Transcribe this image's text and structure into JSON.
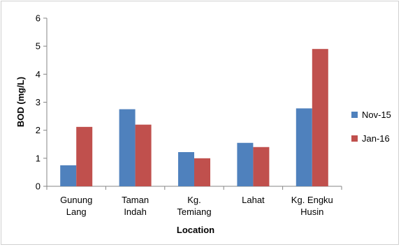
{
  "chart_data": {
    "type": "bar",
    "title": "",
    "xlabel": "Location",
    "ylabel": "BOD (mg/L)",
    "ylim": [
      0,
      6
    ],
    "yticks": [
      0,
      1,
      2,
      3,
      4,
      5,
      6
    ],
    "categories": [
      [
        "Gunung",
        "Lang"
      ],
      [
        "Taman",
        "Indah"
      ],
      [
        "Kg.",
        "Temiang"
      ],
      [
        "Lahat"
      ],
      [
        "Kg. Engku",
        "Husin"
      ]
    ],
    "series": [
      {
        "name": "Nov-15",
        "color": "#4F81BD",
        "values": [
          0.75,
          2.75,
          1.22,
          1.55,
          2.78
        ]
      },
      {
        "name": "Jan-16",
        "color": "#C0504D",
        "values": [
          2.12,
          2.2,
          1.0,
          1.4,
          4.9
        ]
      }
    ],
    "grid": false,
    "legend_position": "right"
  }
}
